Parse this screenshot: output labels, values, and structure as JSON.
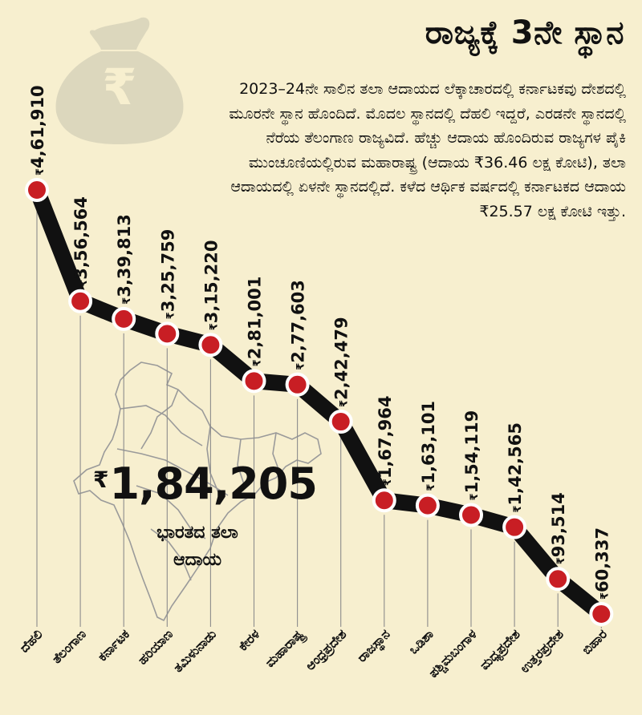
{
  "title": "ರಾಜ್ಯಕ್ಕೆ 3ನೇ ಸ್ಥಾನ",
  "description": "2023–24ನೇ ಸಾಲಿನ ತಲಾ ಆದಾಯದ ಲೆಕ್ಕಾಚಾರದಲ್ಲಿ ಕರ್ನಾಟಕವು ದೇಶದಲ್ಲಿ ಮೂರನೇ ಸ್ಥಾನ ಹೊಂದಿದೆ. ಮೊದಲ ಸ್ಥಾನದಲ್ಲಿ ದೆಹಲಿ ಇದ್ದರೆ, ಎರಡನೇ ಸ್ಥಾನದಲ್ಲಿ ನೆರೆಯ ತೆಲಂಗಾಣ ರಾಜ್ಯವಿದೆ. ಹೆಚ್ಚು ಆದಾಯ ಹೊಂದಿರುವ ರಾಜ್ಯಗಳ ಪೈಕಿ ಮುಂಚೂಣಿಯಲ್ಲಿರುವ ಮಹಾರಾಷ್ಟ್ರ (ಆದಾಯ ₹36.46 ಲಕ್ಷ ಕೋಟಿ), ತಲಾ ಆದಾಯದಲ್ಲಿ ಏಳನೇ ಸ್ಥಾನದಲ್ಲಿದೆ. ಕಳೆದ ಆರ್ಥಿಕ ವರ್ಷದಲ್ಲಿ ಕರ್ನಾಟಕದ ಆದಾಯ ₹25.57 ಲಕ್ಷ ಕೋಟಿ ಇತ್ತು.",
  "india_summary": {
    "currency_symbol": "₹",
    "value": "1,84,205",
    "label": "ಭಾರತದ ತಲಾ ಆದಾಯ"
  },
  "colors": {
    "background": "#f7efcf",
    "line": "#111111",
    "marker": "#c81e24",
    "marker_ring": "#ffffff",
    "gridline": "#8c8c8c",
    "map_outline": "#9a9a9a",
    "bag": "#dcd7bd"
  },
  "icons": [
    "money-bag-icon",
    "india-map-icon"
  ],
  "chart_data": {
    "type": "line",
    "title": "ರಾಜ್ಯಕ್ಕೆ 3ನೇ ಸ್ಥಾನ",
    "xlabel": "",
    "ylabel": "",
    "value_prefix": "₹",
    "grid": true,
    "categories": [
      "ದೆಹಲಿ",
      "ತೆಲಂಗಾಣ",
      "ಕರ್ನಾಟಕ",
      "ಹರಿಯಾಣ",
      "ತಮಿಳುನಾಡು",
      "ಕೇರಳ",
      "ಮಹಾರಾಷ್ಟ್ರ",
      "ಆಂಧ್ರಪ್ರದೇಶ",
      "ರಾಜಸ್ಥಾನ",
      "ಒಡಿಶಾ",
      "ಪಶ್ಚಿಮಬಂಗಾಳ",
      "ಮಧ್ಯಪ್ರದೇಶ",
      "ಉತ್ತರಪ್ರದೇಶ",
      "ಬಿಹಾರ"
    ],
    "values": [
      461910,
      356564,
      339813,
      325759,
      315220,
      281001,
      277603,
      242479,
      167964,
      163101,
      154119,
      142565,
      93514,
      60337
    ],
    "value_labels": [
      "4,61,910",
      "3,56,564",
      "3,39,813",
      "3,25,759",
      "3,15,220",
      "2,81,001",
      "2,77,603",
      "2,42,479",
      "1,67,964",
      "1,63,101",
      "1,54,119",
      "1,42,565",
      "93,514",
      "60,337"
    ]
  }
}
